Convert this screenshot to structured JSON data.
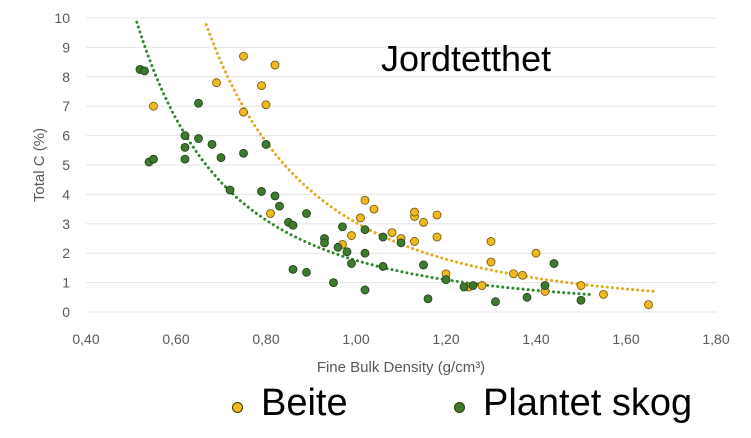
{
  "chart_data": {
    "type": "scatter",
    "title": "",
    "annotation": "Jordtetthet",
    "xlabel": "Fine Bulk Density (g/cm³)",
    "ylabel": "Total C (%)",
    "xlim": [
      0.4,
      1.8
    ],
    "ylim": [
      0,
      10
    ],
    "x_ticks": [
      "0,40",
      "0,60",
      "0,80",
      "1,00",
      "1,20",
      "1,40",
      "1,60",
      "1,80"
    ],
    "y_ticks": [
      "0",
      "1",
      "2",
      "3",
      "4",
      "5",
      "6",
      "7",
      "8",
      "9",
      "10"
    ],
    "legend_position": "bottom",
    "series": [
      {
        "name": "Beite",
        "color": "#f2b81f",
        "trend_color": "#e6a81c",
        "points": [
          [
            0.55,
            7.0
          ],
          [
            0.69,
            7.8
          ],
          [
            0.75,
            8.7
          ],
          [
            0.75,
            6.8
          ],
          [
            0.79,
            7.7
          ],
          [
            0.8,
            7.05
          ],
          [
            0.82,
            8.4
          ],
          [
            0.81,
            3.35
          ],
          [
            0.97,
            2.3
          ],
          [
            0.99,
            2.6
          ],
          [
            1.01,
            3.2
          ],
          [
            1.02,
            3.8
          ],
          [
            1.04,
            3.5
          ],
          [
            1.08,
            2.7
          ],
          [
            1.1,
            2.5
          ],
          [
            1.13,
            3.25
          ],
          [
            1.13,
            3.4
          ],
          [
            1.15,
            3.05
          ],
          [
            1.13,
            2.4
          ],
          [
            1.18,
            3.3
          ],
          [
            1.18,
            2.55
          ],
          [
            1.2,
            1.3
          ],
          [
            1.28,
            0.9
          ],
          [
            1.3,
            2.4
          ],
          [
            1.3,
            1.7
          ],
          [
            1.35,
            1.3
          ],
          [
            1.37,
            1.25
          ],
          [
            1.4,
            2.0
          ],
          [
            1.42,
            0.7
          ],
          [
            1.5,
            0.9
          ],
          [
            1.55,
            0.6
          ],
          [
            1.65,
            0.25
          ],
          [
            1.25,
            0.85
          ]
        ]
      },
      {
        "name": "Plantet skog",
        "color": "#3d7a2f",
        "trend_color": "#2f8a2f",
        "points": [
          [
            0.52,
            8.25
          ],
          [
            0.53,
            8.2
          ],
          [
            0.54,
            5.1
          ],
          [
            0.55,
            5.2
          ],
          [
            0.62,
            6.0
          ],
          [
            0.62,
            5.6
          ],
          [
            0.62,
            5.2
          ],
          [
            0.65,
            7.1
          ],
          [
            0.65,
            5.9
          ],
          [
            0.68,
            5.7
          ],
          [
            0.7,
            5.25
          ],
          [
            0.72,
            4.15
          ],
          [
            0.75,
            5.4
          ],
          [
            0.79,
            4.1
          ],
          [
            0.8,
            5.7
          ],
          [
            0.82,
            3.95
          ],
          [
            0.83,
            3.6
          ],
          [
            0.85,
            3.05
          ],
          [
            0.86,
            1.45
          ],
          [
            0.89,
            1.35
          ],
          [
            0.89,
            3.35
          ],
          [
            0.93,
            2.5
          ],
          [
            0.93,
            2.35
          ],
          [
            0.95,
            1.0
          ],
          [
            0.96,
            2.2
          ],
          [
            0.97,
            2.9
          ],
          [
            0.98,
            2.05
          ],
          [
            0.99,
            1.65
          ],
          [
            1.02,
            2.8
          ],
          [
            1.02,
            2.0
          ],
          [
            1.02,
            0.75
          ],
          [
            1.06,
            2.55
          ],
          [
            1.06,
            1.55
          ],
          [
            1.1,
            2.35
          ],
          [
            1.15,
            1.6
          ],
          [
            1.16,
            0.45
          ],
          [
            1.2,
            1.1
          ],
          [
            1.24,
            0.85
          ],
          [
            1.31,
            0.35
          ],
          [
            1.38,
            0.5
          ],
          [
            1.42,
            0.9
          ],
          [
            1.44,
            1.65
          ],
          [
            1.5,
            0.4
          ],
          [
            1.26,
            0.9
          ],
          [
            0.86,
            2.95
          ]
        ]
      }
    ]
  }
}
